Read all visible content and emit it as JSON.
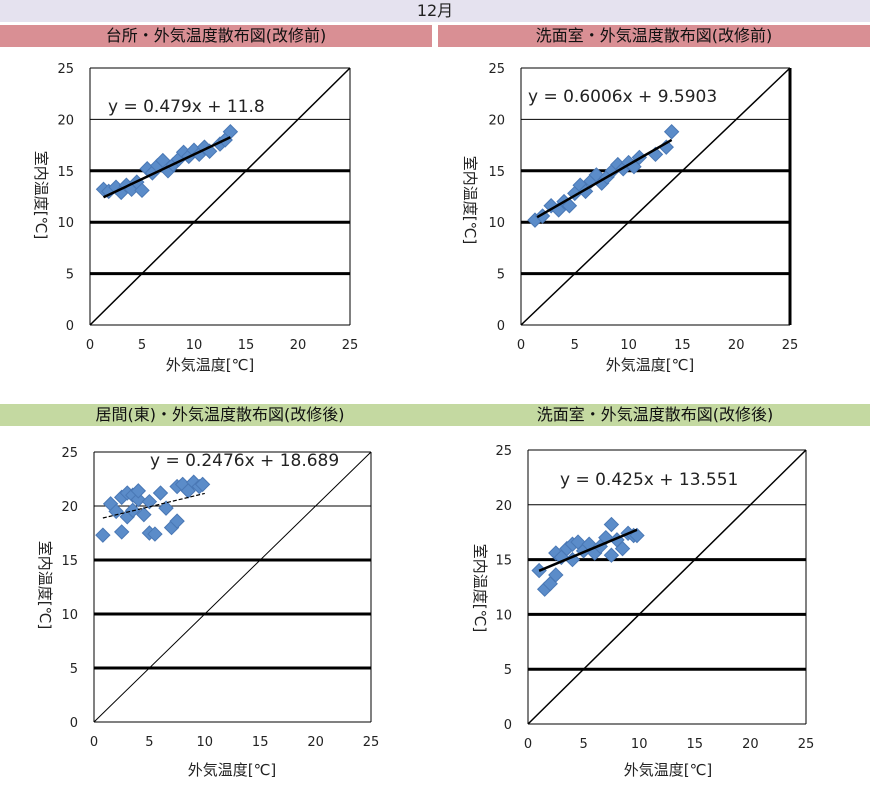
{
  "page_title": "12月",
  "headers": [
    "台所・外気温度散布図(改修前)",
    "洗面室・外気温度散布図(改修前)",
    "居間(東)・外気温度散布図(改修後)",
    "洗面室・外気温度散布図(改修後)"
  ],
  "chart_data": [
    {
      "type": "scatter",
      "title": "台所・外気温度散布図(改修前)",
      "xlabel": "外気温度[℃]",
      "ylabel": "室内温度[℃]",
      "xlim": [
        0,
        25
      ],
      "ylim": [
        0,
        25
      ],
      "xticks": [
        "0",
        "5",
        "10",
        "15",
        "20",
        "25"
      ],
      "yticks": [
        "0",
        "5",
        "10",
        "15",
        "20",
        "25"
      ],
      "grid": "horizontal",
      "equation": "y = 0.479x + 11.8",
      "trendline": {
        "slope": 0.479,
        "intercept": 11.8,
        "x_range": [
          1.3,
          13.5
        ]
      },
      "reference_line": "y = x",
      "marker_color": "#5b8cc9",
      "points": [
        [
          1.3,
          13.2
        ],
        [
          1.8,
          13.0
        ],
        [
          2.5,
          13.4
        ],
        [
          3.0,
          12.9
        ],
        [
          3.5,
          13.6
        ],
        [
          4.0,
          13.2
        ],
        [
          4.5,
          13.9
        ],
        [
          5.0,
          13.1
        ],
        [
          5.5,
          15.2
        ],
        [
          6.0,
          14.8
        ],
        [
          6.5,
          15.5
        ],
        [
          7.0,
          16.0
        ],
        [
          7.5,
          15.0
        ],
        [
          8.0,
          15.6
        ],
        [
          8.5,
          16.1
        ],
        [
          9.0,
          16.8
        ],
        [
          9.5,
          16.4
        ],
        [
          10.0,
          17.0
        ],
        [
          10.5,
          16.6
        ],
        [
          11.0,
          17.3
        ],
        [
          11.5,
          16.9
        ],
        [
          12.5,
          17.6
        ],
        [
          13.0,
          18.0
        ],
        [
          13.5,
          18.8
        ]
      ]
    },
    {
      "type": "scatter",
      "title": "洗面室・外気温度散布図(改修前)",
      "xlabel": "外気温度[℃]",
      "ylabel": "室内温度[℃]",
      "xlim": [
        0,
        25
      ],
      "ylim": [
        0,
        25
      ],
      "xticks": [
        "0",
        "5",
        "10",
        "15",
        "20",
        "25"
      ],
      "yticks": [
        "0",
        "5",
        "10",
        "15",
        "20",
        "25"
      ],
      "grid": "horizontal",
      "equation": "y = 0.6006x + 9.5903",
      "trendline": {
        "slope": 0.6006,
        "intercept": 9.5903,
        "x_range": [
          1.5,
          14.0
        ]
      },
      "reference_line": "y = x",
      "marker_color": "#5b8cc9",
      "points": [
        [
          1.3,
          10.2
        ],
        [
          2.0,
          10.6
        ],
        [
          2.8,
          11.6
        ],
        [
          3.5,
          11.2
        ],
        [
          4.0,
          12.0
        ],
        [
          4.5,
          11.6
        ],
        [
          5.0,
          12.8
        ],
        [
          5.5,
          13.6
        ],
        [
          6.0,
          13.0
        ],
        [
          6.5,
          14.0
        ],
        [
          7.0,
          14.6
        ],
        [
          7.5,
          13.8
        ],
        [
          8.0,
          14.4
        ],
        [
          8.5,
          15.0
        ],
        [
          9.0,
          15.6
        ],
        [
          9.5,
          15.2
        ],
        [
          10.0,
          15.8
        ],
        [
          10.5,
          15.4
        ],
        [
          11.0,
          16.3
        ],
        [
          12.5,
          16.6
        ],
        [
          13.5,
          17.3
        ],
        [
          14.0,
          18.8
        ]
      ]
    },
    {
      "type": "scatter",
      "title": "居間(東)・外気温度散布図(改修後)",
      "xlabel": "外気温度[℃]",
      "ylabel": "室内温度[℃]",
      "xlim": [
        0,
        25
      ],
      "ylim": [
        0,
        25
      ],
      "xticks": [
        "0",
        "5",
        "10",
        "15",
        "20",
        "25"
      ],
      "yticks": [
        "0",
        "5",
        "10",
        "15",
        "20",
        "25"
      ],
      "grid": "horizontal",
      "equation": "y = 0.2476x + 18.689",
      "trendline": {
        "slope": 0.2476,
        "intercept": 18.689,
        "x_range": [
          0.8,
          10.0
        ]
      },
      "reference_line": "y = x",
      "marker_color": "#5b8cc9",
      "points": [
        [
          0.8,
          17.3
        ],
        [
          1.5,
          20.2
        ],
        [
          2.0,
          19.5
        ],
        [
          2.5,
          17.6
        ],
        [
          2.5,
          20.8
        ],
        [
          3.0,
          21.2
        ],
        [
          3.0,
          19.0
        ],
        [
          3.5,
          21.0
        ],
        [
          3.5,
          19.6
        ],
        [
          4.0,
          20.6
        ],
        [
          4.0,
          21.4
        ],
        [
          4.5,
          19.2
        ],
        [
          5.0,
          20.4
        ],
        [
          5.0,
          17.5
        ],
        [
          5.5,
          17.4
        ],
        [
          6.0,
          21.2
        ],
        [
          6.5,
          19.8
        ],
        [
          7.0,
          18.0
        ],
        [
          7.5,
          18.6
        ],
        [
          7.5,
          21.8
        ],
        [
          8.0,
          22.0
        ],
        [
          8.5,
          21.4
        ],
        [
          9.0,
          22.2
        ],
        [
          9.5,
          21.8
        ],
        [
          9.8,
          22.0
        ]
      ]
    },
    {
      "type": "scatter",
      "title": "洗面室・外気温度散布図(改修後)",
      "xlabel": "外気温度[℃]",
      "ylabel": "室内温度[℃]",
      "xlim": [
        0,
        25
      ],
      "ylim": [
        0,
        25
      ],
      "xticks": [
        "0",
        "5",
        "10",
        "15",
        "20",
        "25"
      ],
      "yticks": [
        "0",
        "5",
        "10",
        "15",
        "20",
        "25"
      ],
      "grid": "horizontal",
      "equation": "y = 0.425x + 13.551",
      "trendline": {
        "slope": 0.425,
        "intercept": 13.551,
        "x_range": [
          1.0,
          9.8
        ]
      },
      "reference_line": "y = x",
      "marker_color": "#5b8cc9",
      "points": [
        [
          1.0,
          14.0
        ],
        [
          1.5,
          12.3
        ],
        [
          2.0,
          12.8
        ],
        [
          2.5,
          13.6
        ],
        [
          2.5,
          15.6
        ],
        [
          3.0,
          15.2
        ],
        [
          3.5,
          16.0
        ],
        [
          4.0,
          16.4
        ],
        [
          4.0,
          15.0
        ],
        [
          4.5,
          16.6
        ],
        [
          5.0,
          15.8
        ],
        [
          5.5,
          16.4
        ],
        [
          6.0,
          15.6
        ],
        [
          6.5,
          16.2
        ],
        [
          7.0,
          17.0
        ],
        [
          7.5,
          18.2
        ],
        [
          7.5,
          15.4
        ],
        [
          8.0,
          16.8
        ],
        [
          8.5,
          16.0
        ],
        [
          9.0,
          17.4
        ],
        [
          9.5,
          17.2
        ],
        [
          9.8,
          17.2
        ]
      ]
    }
  ]
}
